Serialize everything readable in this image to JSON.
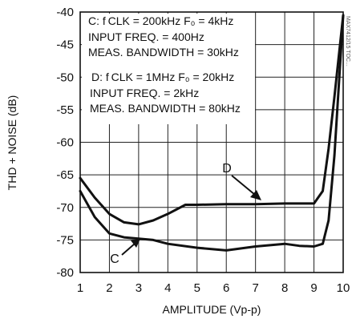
{
  "chart_data": {
    "type": "line",
    "xlabel": "AMPLITUDE (Vp-p)",
    "ylabel": "THD + NOISE (dB)",
    "xlim": [
      1,
      10
    ],
    "ylim": [
      -80,
      -40
    ],
    "xticks": [
      1,
      2,
      3,
      4,
      5,
      6,
      7,
      8,
      9,
      10
    ],
    "yticks": [
      -80,
      -75,
      -70,
      -65,
      -60,
      -55,
      -50,
      -45,
      -40
    ],
    "grid": true,
    "series": [
      {
        "name": "C",
        "x": [
          1,
          1.5,
          2,
          2.5,
          3,
          3.5,
          4,
          5,
          6,
          7,
          7.5,
          8,
          8.5,
          9,
          9.3,
          9.5,
          9.7,
          10
        ],
        "y": [
          -67.5,
          -71.5,
          -74,
          -74.6,
          -74.8,
          -75,
          -75.6,
          -76.2,
          -76.6,
          -76,
          -75.8,
          -75.6,
          -75.9,
          -76,
          -75.6,
          -72,
          -62,
          -40.5
        ]
      },
      {
        "name": "D",
        "x": [
          1,
          1.5,
          2,
          2.5,
          3,
          3.5,
          4,
          4.6,
          5,
          6,
          7,
          8,
          8.5,
          9,
          9.3,
          9.5,
          9.7,
          10
        ],
        "y": [
          -65.5,
          -68.5,
          -71,
          -72.3,
          -72.6,
          -72,
          -71,
          -69.6,
          -69.6,
          -69.5,
          -69.5,
          -69.4,
          -69.4,
          -69.4,
          -67.5,
          -61,
          -53,
          -40.5
        ]
      }
    ],
    "annotations": {
      "c_lines": [
        "C:  f CLK = 200kHz   F₀ = 4kHz",
        "INPUT FREQ. = 400Hz",
        "MEAS. BANDWIDTH = 30kHz"
      ],
      "d_lines": [
        "D:  f CLK = 1MHz   F₀ = 20kHz",
        "INPUT FREQ. = 2kHz",
        "MEAS. BANDWIDTH = 80kHz"
      ],
      "label_c": "C",
      "label_d": "D"
    },
    "watermark": "MAX7412/15 TOC..."
  }
}
